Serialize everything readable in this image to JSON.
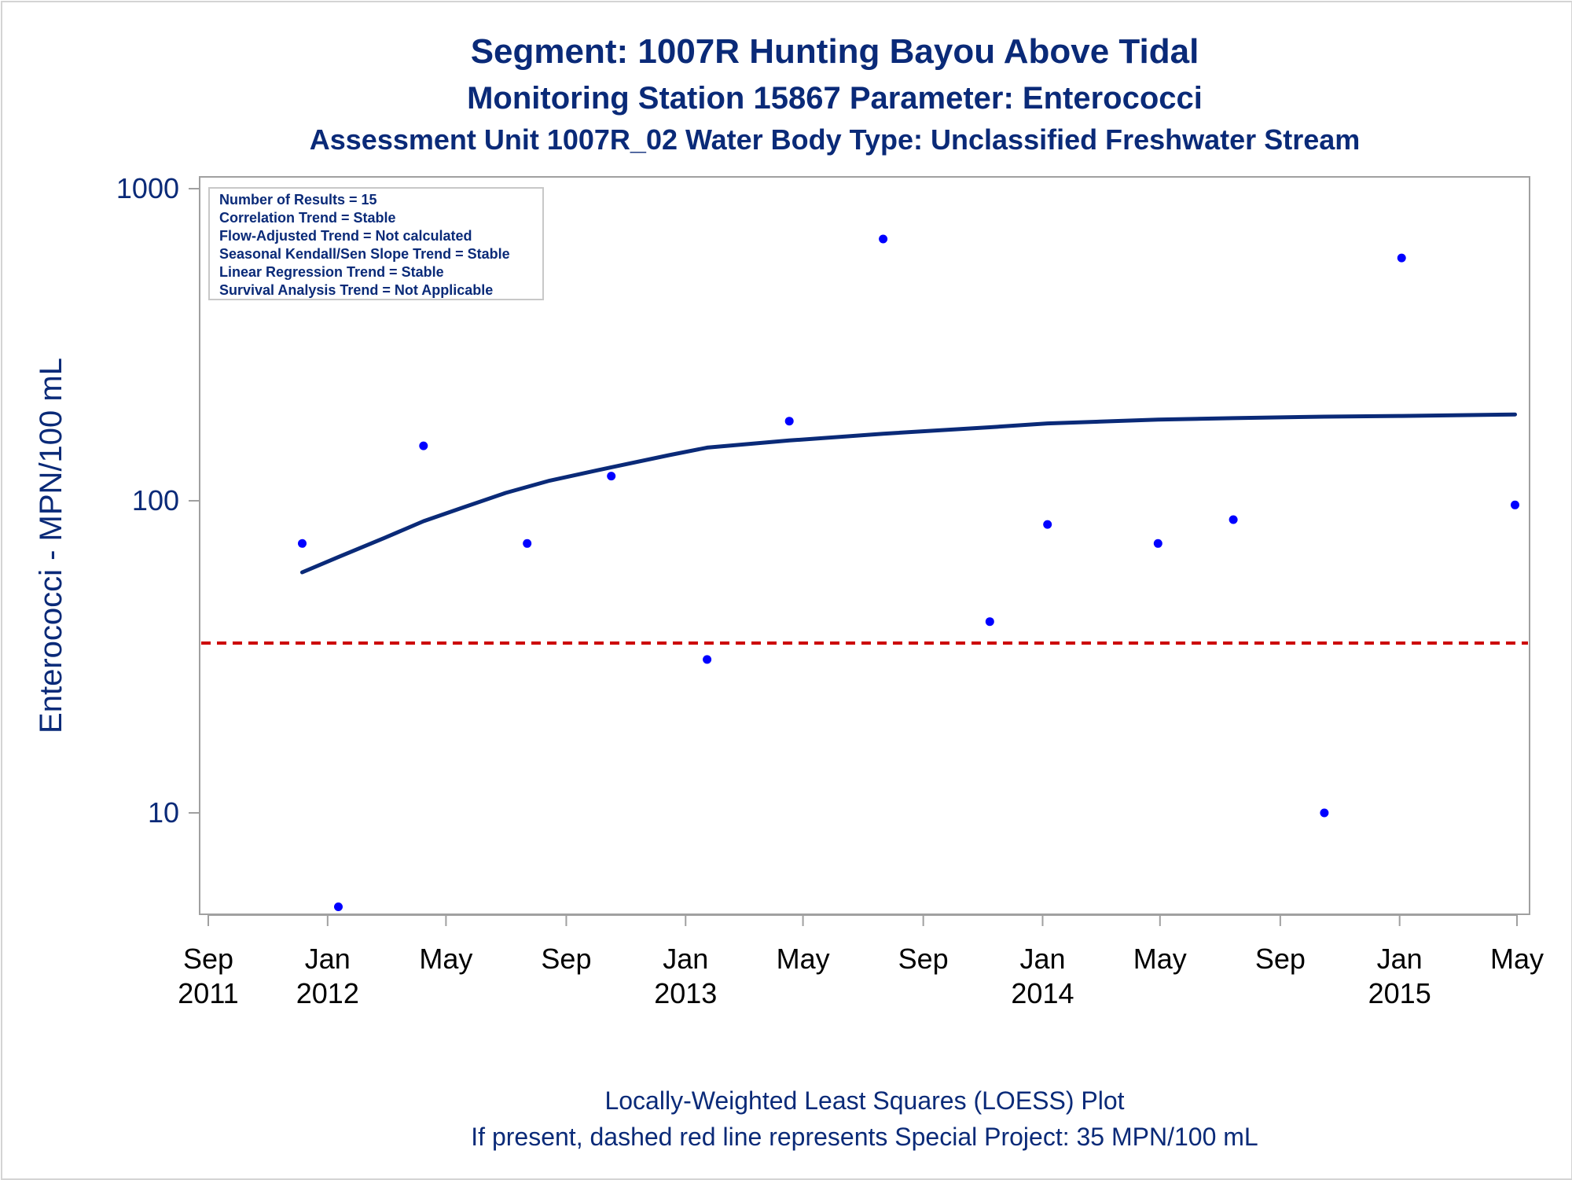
{
  "chart_data": {
    "type": "scatter",
    "title": "Segment: 1007R  Hunting Bayou Above Tidal",
    "subtitle": "Monitoring Station 15867 Parameter: Enterococci",
    "subtitle2": "Assessment Unit 1007R_02   Water Body Type: Unclassified Freshwater Stream",
    "ylabel": "Enterococci - MPN/100 mL",
    "yscale": "log",
    "ylim": [
      5,
      1000
    ],
    "yticks": [
      10,
      100,
      1000
    ],
    "xlim": [
      "2011-09-01",
      "2015-05-01"
    ],
    "xticks": [
      {
        "date": "2011-09-01",
        "month": "Sep",
        "year": "2011"
      },
      {
        "date": "2012-01-01",
        "month": "Jan",
        "year": "2012"
      },
      {
        "date": "2012-05-01",
        "month": "May",
        "year": ""
      },
      {
        "date": "2012-09-01",
        "month": "Sep",
        "year": ""
      },
      {
        "date": "2013-01-01",
        "month": "Jan",
        "year": "2013"
      },
      {
        "date": "2013-05-01",
        "month": "May",
        "year": ""
      },
      {
        "date": "2013-09-01",
        "month": "Sep",
        "year": ""
      },
      {
        "date": "2014-01-01",
        "month": "Jan",
        "year": "2014"
      },
      {
        "date": "2014-05-01",
        "month": "May",
        "year": ""
      },
      {
        "date": "2014-09-01",
        "month": "Sep",
        "year": ""
      },
      {
        "date": "2015-01-01",
        "month": "Jan",
        "year": "2015"
      },
      {
        "date": "2015-05-01",
        "month": "May",
        "year": ""
      }
    ],
    "series": [
      {
        "type": "scatter",
        "color": "#0000ff",
        "points": [
          {
            "x": "2011-12-06",
            "y": 73
          },
          {
            "x": "2012-01-12",
            "y": 5
          },
          {
            "x": "2012-04-08",
            "y": 150
          },
          {
            "x": "2012-07-23",
            "y": 73
          },
          {
            "x": "2012-10-17",
            "y": 120
          },
          {
            "x": "2013-01-23",
            "y": 31
          },
          {
            "x": "2013-04-17",
            "y": 180
          },
          {
            "x": "2013-07-22",
            "y": 690
          },
          {
            "x": "2013-11-08",
            "y": 41
          },
          {
            "x": "2014-01-06",
            "y": 84
          },
          {
            "x": "2014-04-29",
            "y": 73
          },
          {
            "x": "2014-07-15",
            "y": 87
          },
          {
            "x": "2014-10-16",
            "y": 10
          },
          {
            "x": "2015-01-03",
            "y": 600
          },
          {
            "x": "2015-04-29",
            "y": 97
          }
        ]
      },
      {
        "type": "line",
        "color": "#0a2a78",
        "points": [
          {
            "x": "2011-12-06",
            "y": 59
          },
          {
            "x": "2012-01-12",
            "y": 66
          },
          {
            "x": "2012-02-28",
            "y": 76
          },
          {
            "x": "2012-04-08",
            "y": 86
          },
          {
            "x": "2012-05-18",
            "y": 95
          },
          {
            "x": "2012-07-01",
            "y": 106
          },
          {
            "x": "2012-08-15",
            "y": 116
          },
          {
            "x": "2012-10-17",
            "y": 128
          },
          {
            "x": "2012-12-15",
            "y": 140
          },
          {
            "x": "2013-01-23",
            "y": 148
          },
          {
            "x": "2013-04-17",
            "y": 156
          },
          {
            "x": "2013-07-22",
            "y": 164
          },
          {
            "x": "2013-11-08",
            "y": 172
          },
          {
            "x": "2014-01-06",
            "y": 177
          },
          {
            "x": "2014-04-29",
            "y": 182
          },
          {
            "x": "2014-07-15",
            "y": 184
          },
          {
            "x": "2014-10-16",
            "y": 186
          },
          {
            "x": "2015-01-03",
            "y": 187
          },
          {
            "x": "2015-04-29",
            "y": 189
          }
        ]
      }
    ],
    "reference_line": {
      "y": 35,
      "color": "#cc0000",
      "style": "dashed"
    },
    "info_box": [
      "Number of Results = 15",
      "Correlation Trend = Stable",
      "Flow-Adjusted Trend = Not calculated",
      "Seasonal Kendall/Sen Slope Trend = Stable",
      "Linear Regression Trend = Stable",
      "Survival Analysis Trend = Not Applicable"
    ],
    "footnotes": [
      "Locally-Weighted Least Squares (LOESS) Plot",
      "If present, dashed red line represents Special Project: 35 MPN/100 mL"
    ],
    "grid": false
  }
}
